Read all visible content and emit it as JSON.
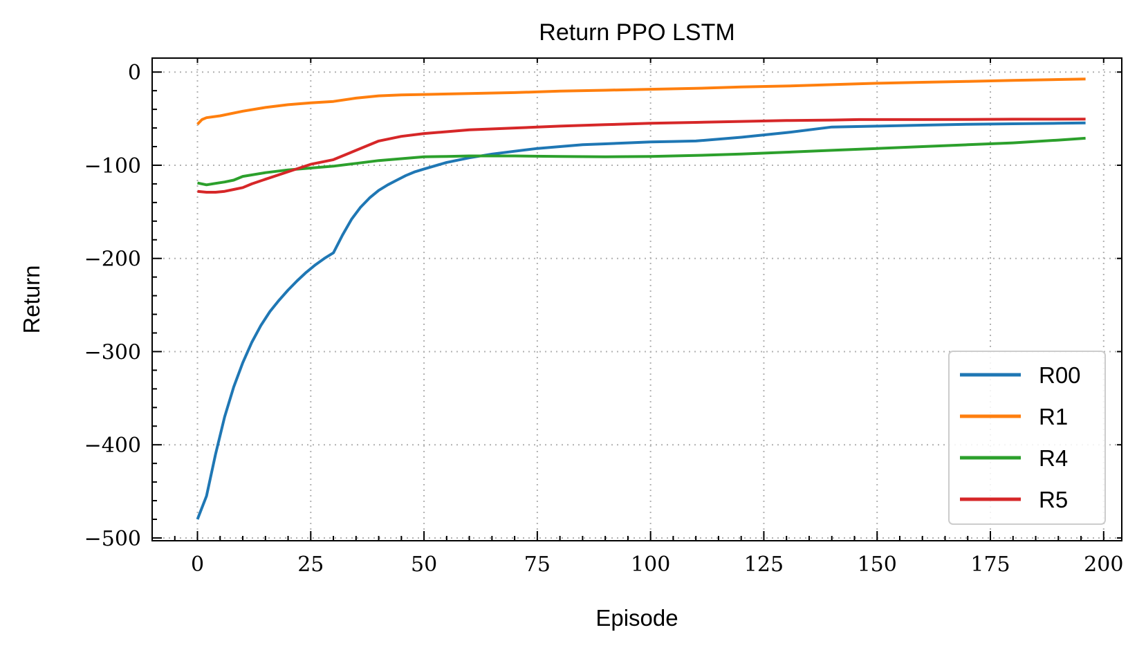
{
  "chart_data": {
    "type": "line",
    "title": "Return PPO LSTM",
    "xlabel": "Episode",
    "ylabel": "Return",
    "xlim": [
      -10,
      204
    ],
    "ylim": [
      -503,
      15
    ],
    "xticks": [
      0,
      25,
      50,
      75,
      100,
      125,
      150,
      175,
      200
    ],
    "yticks": [
      0,
      -100,
      -200,
      -300,
      -400,
      -500
    ],
    "xtick_labels": [
      "0",
      "25",
      "50",
      "75",
      "100",
      "125",
      "150",
      "175",
      "200"
    ],
    "ytick_labels": [
      "0",
      "−100",
      "−200",
      "−300",
      "−400",
      "−500"
    ],
    "grid": true,
    "legend_position": "lower-right",
    "series": [
      {
        "name": "R00",
        "color": "#1f77b4",
        "points": [
          [
            0,
            -480
          ],
          [
            2,
            -455
          ],
          [
            4,
            -410
          ],
          [
            6,
            -370
          ],
          [
            8,
            -338
          ],
          [
            10,
            -312
          ],
          [
            12,
            -290
          ],
          [
            14,
            -272
          ],
          [
            16,
            -257
          ],
          [
            18,
            -245
          ],
          [
            20,
            -234
          ],
          [
            22,
            -224
          ],
          [
            24,
            -215
          ],
          [
            26,
            -207
          ],
          [
            28,
            -200
          ],
          [
            30,
            -194
          ],
          [
            32,
            -175
          ],
          [
            34,
            -158
          ],
          [
            36,
            -145
          ],
          [
            38,
            -135
          ],
          [
            40,
            -127
          ],
          [
            42,
            -121
          ],
          [
            44,
            -116
          ],
          [
            46,
            -111
          ],
          [
            48,
            -107
          ],
          [
            50,
            -104
          ],
          [
            55,
            -97
          ],
          [
            60,
            -92
          ],
          [
            65,
            -88
          ],
          [
            70,
            -85
          ],
          [
            75,
            -82
          ],
          [
            80,
            -80
          ],
          [
            85,
            -78
          ],
          [
            90,
            -77
          ],
          [
            95,
            -76
          ],
          [
            100,
            -75
          ],
          [
            105,
            -74.5
          ],
          [
            110,
            -74
          ],
          [
            120,
            -70
          ],
          [
            130,
            -65
          ],
          [
            140,
            -59
          ],
          [
            150,
            -58
          ],
          [
            160,
            -57
          ],
          [
            170,
            -56
          ],
          [
            180,
            -55.5
          ],
          [
            190,
            -55
          ],
          [
            196,
            -54.5
          ]
        ]
      },
      {
        "name": "R1",
        "color": "#ff7f0e",
        "points": [
          [
            0,
            -56
          ],
          [
            1,
            -51
          ],
          [
            2,
            -49
          ],
          [
            5,
            -47
          ],
          [
            10,
            -42
          ],
          [
            15,
            -38
          ],
          [
            20,
            -35
          ],
          [
            25,
            -33
          ],
          [
            30,
            -31.5
          ],
          [
            35,
            -28
          ],
          [
            40,
            -25.5
          ],
          [
            45,
            -24.5
          ],
          [
            50,
            -24
          ],
          [
            60,
            -23
          ],
          [
            70,
            -22
          ],
          [
            80,
            -20.5
          ],
          [
            90,
            -19.5
          ],
          [
            100,
            -18.5
          ],
          [
            110,
            -17.5
          ],
          [
            120,
            -16
          ],
          [
            130,
            -15
          ],
          [
            140,
            -13.5
          ],
          [
            150,
            -12
          ],
          [
            160,
            -11
          ],
          [
            170,
            -10
          ],
          [
            180,
            -9
          ],
          [
            190,
            -8
          ],
          [
            196,
            -7.5
          ]
        ]
      },
      {
        "name": "R4",
        "color": "#2ca02c",
        "points": [
          [
            0,
            -119
          ],
          [
            2,
            -121
          ],
          [
            4,
            -119.5
          ],
          [
            6,
            -118
          ],
          [
            8,
            -116
          ],
          [
            10,
            -112
          ],
          [
            15,
            -108
          ],
          [
            20,
            -105
          ],
          [
            25,
            -103
          ],
          [
            30,
            -101
          ],
          [
            35,
            -98
          ],
          [
            40,
            -95
          ],
          [
            45,
            -93
          ],
          [
            50,
            -91
          ],
          [
            55,
            -90.5
          ],
          [
            60,
            -90
          ],
          [
            70,
            -90
          ],
          [
            80,
            -90.5
          ],
          [
            90,
            -91
          ],
          [
            100,
            -90.5
          ],
          [
            110,
            -89.5
          ],
          [
            120,
            -88
          ],
          [
            130,
            -86
          ],
          [
            140,
            -84
          ],
          [
            150,
            -82
          ],
          [
            160,
            -80
          ],
          [
            170,
            -78
          ],
          [
            180,
            -76
          ],
          [
            190,
            -73
          ],
          [
            196,
            -71
          ]
        ]
      },
      {
        "name": "R5",
        "color": "#d62728",
        "points": [
          [
            0,
            -128
          ],
          [
            2,
            -129
          ],
          [
            4,
            -129
          ],
          [
            6,
            -128
          ],
          [
            8,
            -126
          ],
          [
            10,
            -124
          ],
          [
            12,
            -120
          ],
          [
            15,
            -115
          ],
          [
            20,
            -107
          ],
          [
            25,
            -99
          ],
          [
            30,
            -94
          ],
          [
            35,
            -84
          ],
          [
            40,
            -74
          ],
          [
            45,
            -69
          ],
          [
            50,
            -66
          ],
          [
            60,
            -62
          ],
          [
            70,
            -60
          ],
          [
            80,
            -58
          ],
          [
            90,
            -56.5
          ],
          [
            100,
            -55
          ],
          [
            110,
            -54
          ],
          [
            120,
            -53
          ],
          [
            130,
            -52
          ],
          [
            140,
            -51.5
          ],
          [
            146,
            -51
          ],
          [
            160,
            -51
          ],
          [
            170,
            -50.8
          ],
          [
            180,
            -50.6
          ],
          [
            196,
            -50.5
          ]
        ]
      }
    ]
  }
}
